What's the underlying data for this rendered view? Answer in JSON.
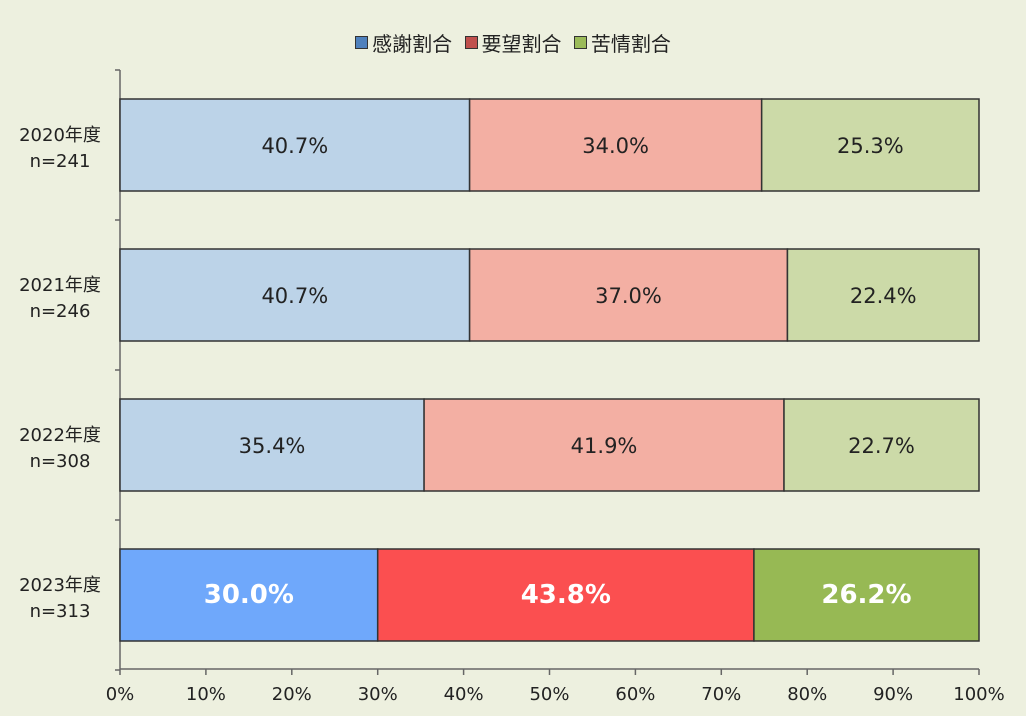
{
  "chart_data": {
    "type": "bar",
    "orientation": "horizontal",
    "stacked": true,
    "percent_stacked": true,
    "categories": [
      {
        "year": "2020年度",
        "n": "n=241"
      },
      {
        "year": "2021年度",
        "n": "n=246"
      },
      {
        "year": "2022年度",
        "n": "n=308"
      },
      {
        "year": "2023年度",
        "n": "n=313"
      }
    ],
    "series": [
      {
        "name": "感謝割合",
        "values": [
          40.7,
          40.7,
          35.4,
          30.0
        ],
        "labels": [
          "40.7%",
          "40.7%",
          "35.4%",
          "30.0%"
        ],
        "color": "#BCD3E8",
        "highlight_color": "#6FA8FB"
      },
      {
        "name": "要望割合",
        "values": [
          34.0,
          37.0,
          41.9,
          43.8
        ],
        "labels": [
          "34.0%",
          "37.0%",
          "41.9%",
          "43.8%"
        ],
        "color": "#F3AFA3",
        "highlight_color": "#FB4F50"
      },
      {
        "name": "苦情割合",
        "values": [
          25.3,
          22.4,
          22.7,
          26.2
        ],
        "labels": [
          "25.3%",
          "22.4%",
          "22.7%",
          "26.2%"
        ],
        "color": "#CCDAA8",
        "highlight_color": "#97B954"
      }
    ],
    "highlight_category_index": 3,
    "xlim": [
      0,
      100
    ],
    "x_ticks": [
      "0%",
      "10%",
      "20%",
      "30%",
      "40%",
      "50%",
      "60%",
      "70%",
      "80%",
      "90%",
      "100%"
    ],
    "legend": "top-center",
    "grid": false,
    "title": "",
    "xlabel": "",
    "ylabel": ""
  },
  "colors": {
    "background": "#EDF0DF",
    "bar_border": "#333333",
    "axis": "#666666",
    "text": "#222222",
    "highlight_text": "#FFFFFF"
  }
}
